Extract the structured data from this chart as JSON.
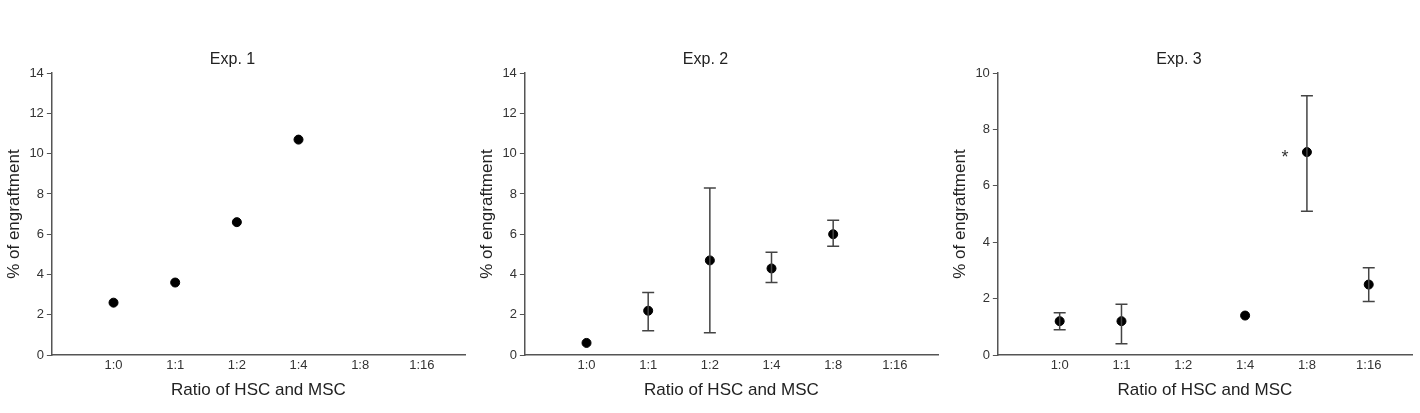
{
  "chart_data": [
    {
      "type": "scatter",
      "title": "Exp. 1",
      "xlabel": "Ratio of HSC and MSC",
      "ylabel": "% of engraftment",
      "categories": [
        "1:0",
        "1:1",
        "1:2",
        "1:4",
        "1:8",
        "1:16"
      ],
      "ylim": [
        0,
        14
      ],
      "yticks": [
        0,
        2,
        4,
        6,
        8,
        10,
        12,
        14
      ],
      "grid": false,
      "legend": false,
      "marker": "circle",
      "series": [
        {
          "color": "#000000",
          "values": [
            2.6,
            3.6,
            6.6,
            10.7,
            null,
            null
          ]
        }
      ]
    },
    {
      "type": "scatter",
      "title": "Exp. 2",
      "xlabel": "Ratio of HSC and MSC",
      "ylabel": "% of engraftment",
      "categories": [
        "1:0",
        "1:1",
        "1:2",
        "1:4",
        "1:8",
        "1:16"
      ],
      "ylim": [
        0,
        14
      ],
      "yticks": [
        0,
        2,
        4,
        6,
        8,
        10,
        12,
        14
      ],
      "grid": false,
      "legend": false,
      "marker": "circle",
      "series": [
        {
          "color": "#000000",
          "values": [
            0.6,
            2.2,
            4.7,
            4.3,
            6.0,
            null
          ],
          "errors": [
            null,
            [
              1.2,
              3.1
            ],
            [
              1.1,
              8.3
            ],
            [
              3.6,
              5.1
            ],
            [
              5.4,
              6.7
            ],
            null
          ]
        }
      ]
    },
    {
      "type": "scatter",
      "title": "Exp. 3",
      "xlabel": "Ratio of HSC and MSC",
      "ylabel": "% of engraftment",
      "categories": [
        "1:0",
        "1:1",
        "1:2",
        "1:4",
        "1:8",
        "1:16"
      ],
      "ylim": [
        0,
        10
      ],
      "yticks": [
        0,
        2,
        4,
        6,
        8,
        10
      ],
      "grid": false,
      "legend": false,
      "marker": "circle",
      "annotations": [
        {
          "text": "*",
          "x": "1:8",
          "y": 7.1
        }
      ],
      "series": [
        {
          "color": "#000000",
          "values": [
            1.2,
            1.2,
            null,
            1.4,
            7.2,
            2.5
          ],
          "errors": [
            [
              0.9,
              1.5
            ],
            [
              0.4,
              1.8
            ],
            null,
            null,
            [
              5.1,
              9.2
            ],
            [
              1.9,
              3.1
            ]
          ]
        }
      ]
    }
  ]
}
